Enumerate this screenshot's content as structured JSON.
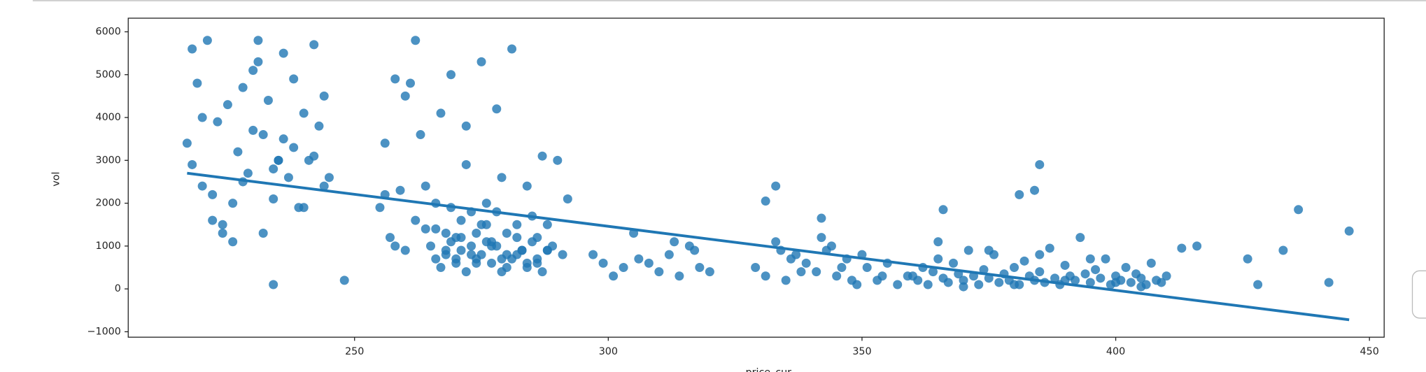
{
  "chart_data": {
    "type": "scatter",
    "x_label": "price_cur",
    "y_label": "vol",
    "xlim": [
      205.4,
      452.9
    ],
    "ylim": [
      -1127,
      6318
    ],
    "xticks": [
      250,
      300,
      350,
      400,
      450
    ],
    "yticks": [
      {
        "value": -1000,
        "label": "−1000"
      },
      0,
      1000,
      2000,
      3000,
      4000,
      5000,
      6000
    ],
    "color": "#1f77b4",
    "series": [
      {
        "color": "#1f77b4",
        "x": [
          217,
          218,
          219,
          220,
          221,
          222,
          223,
          224,
          225,
          226,
          227,
          228,
          229,
          230,
          231,
          232,
          233,
          234,
          235,
          236,
          237,
          238,
          239,
          240,
          241,
          242,
          243,
          244,
          245,
          218,
          220,
          222,
          224,
          226,
          228,
          230,
          232,
          234,
          236,
          238,
          240,
          242,
          244,
          231,
          235,
          255,
          256,
          257,
          258,
          259,
          260,
          261,
          262,
          263,
          264,
          265,
          266,
          267,
          268,
          269,
          270,
          271,
          272,
          273,
          274,
          275,
          276,
          277,
          278,
          279,
          280,
          281,
          282,
          283,
          284,
          285,
          286,
          287,
          288,
          289,
          290,
          291,
          292,
          256,
          258,
          260,
          262,
          264,
          266,
          268,
          270,
          272,
          274,
          276,
          278,
          280,
          282,
          284,
          286,
          288,
          266,
          267,
          268,
          269,
          270,
          271,
          272,
          273,
          274,
          275,
          276,
          277,
          278,
          279,
          280,
          281,
          282,
          283,
          284,
          285,
          286,
          287,
          288,
          269,
          271,
          273,
          275,
          277,
          279,
          297,
          299,
          301,
          303,
          305,
          308,
          310,
          312,
          314,
          316,
          318,
          320,
          313,
          317,
          306,
          329,
          331,
          333,
          335,
          337,
          339,
          341,
          343,
          345,
          347,
          349,
          351,
          353,
          355,
          357,
          359,
          334,
          338,
          342,
          346,
          350,
          354,
          336,
          344,
          348,
          360,
          361,
          362,
          363,
          364,
          365,
          366,
          367,
          368,
          369,
          370,
          371,
          372,
          373,
          374,
          375,
          376,
          377,
          378,
          379,
          380,
          381,
          382,
          383,
          384,
          385,
          386,
          387,
          388,
          389,
          390,
          391,
          392,
          393,
          394,
          395,
          396,
          397,
          398,
          399,
          400,
          401,
          402,
          403,
          404,
          405,
          406,
          407,
          408,
          409,
          410,
          365,
          370,
          375,
          380,
          385,
          390,
          395,
          400,
          405,
          333,
          331,
          342,
          366,
          381,
          384,
          385,
          436,
          446,
          442,
          428,
          433,
          426,
          416,
          413,
          234,
          248
        ],
        "values": [
          3400,
          5600,
          4800,
          2400,
          5800,
          1600,
          3900,
          1300,
          4300,
          2000,
          3200,
          4700,
          2700,
          5100,
          5800,
          3600,
          4400,
          2100,
          3000,
          5500,
          2600,
          3300,
          1900,
          4100,
          3000,
          5700,
          3800,
          4500,
          2600,
          2900,
          4000,
          2200,
          1500,
          1100,
          2500,
          3700,
          1300,
          2800,
          3500,
          4900,
          1900,
          3100,
          2400,
          5300,
          3000,
          1900,
          3400,
          1200,
          4900,
          2300,
          900,
          4800,
          1600,
          3600,
          2400,
          1000,
          700,
          4100,
          1300,
          5000,
          600,
          900,
          3800,
          1800,
          700,
          5300,
          1500,
          1100,
          4200,
          2600,
          800,
          5600,
          1200,
          900,
          2400,
          1700,
          700,
          3100,
          1500,
          1000,
          3000,
          800,
          2100,
          2200,
          1000,
          4500,
          5800,
          1400,
          2000,
          800,
          1200,
          2900,
          600,
          1100,
          1800,
          500,
          800,
          600,
          1200,
          900,
          1400,
          500,
          900,
          1100,
          700,
          1600,
          400,
          1000,
          1300,
          800,
          2000,
          600,
          1000,
          400,
          1300,
          700,
          1500,
          900,
          500,
          1100,
          600,
          400,
          900,
          1900,
          1200,
          800,
          1500,
          1000,
          700,
          800,
          600,
          300,
          500,
          1300,
          600,
          400,
          800,
          300,
          1000,
          500,
          400,
          1100,
          900,
          700,
          500,
          300,
          1100,
          200,
          800,
          600,
          400,
          900,
          300,
          700,
          100,
          500,
          200,
          600,
          100,
          300,
          900,
          400,
          1200,
          500,
          800,
          300,
          700,
          1000,
          200,
          300,
          200,
          500,
          100,
          400,
          700,
          250,
          150,
          600,
          350,
          200,
          900,
          300,
          100,
          450,
          250,
          800,
          150,
          350,
          200,
          500,
          100,
          650,
          300,
          200,
          400,
          150,
          950,
          250,
          100,
          550,
          300,
          200,
          1200,
          350,
          150,
          450,
          250,
          700,
          100,
          300,
          200,
          500,
          150,
          350,
          250,
          100,
          600,
          200,
          150,
          300,
          1100,
          50,
          900,
          100,
          800,
          200,
          700,
          150,
          50,
          2400,
          2050,
          1650,
          1850,
          2200,
          2300,
          2900,
          1850,
          1350,
          150,
          100,
          900,
          700,
          1000,
          950,
          100,
          200
        ]
      }
    ],
    "regression": {
      "color": "#1f77b4",
      "x": [
        217,
        446
      ],
      "values": [
        2700,
        -720
      ]
    }
  }
}
